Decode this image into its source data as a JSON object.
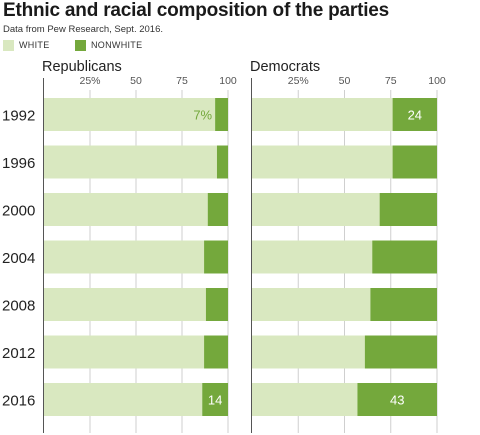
{
  "title": "Ethnic and racial composition of the parties",
  "subtitle": "Data from Pew Research, Sept. 2016.",
  "legend": [
    {
      "label": "WHITE",
      "color": "#d9e8c0"
    },
    {
      "label": "NONWHITE",
      "color": "#74a83c"
    }
  ],
  "chart_data": {
    "type": "bar",
    "orientation": "horizontal",
    "stacked": true,
    "xlim": [
      0,
      100
    ],
    "ticks": [
      25,
      50,
      75,
      100
    ],
    "tick_labels": [
      "25%",
      "50",
      "75",
      "100"
    ],
    "categories": [
      "1992",
      "1996",
      "2000",
      "2004",
      "2008",
      "2012",
      "2016"
    ],
    "panels": [
      {
        "title": "Republicans",
        "series": [
          {
            "name": "NONWHITE",
            "values": [
              7,
              6,
              11,
              13,
              12,
              13,
              14
            ]
          }
        ],
        "data_labels": [
          {
            "category": "1992",
            "text": "7%"
          },
          {
            "category": "2016",
            "text": "14"
          }
        ]
      },
      {
        "title": "Democrats",
        "series": [
          {
            "name": "NONWHITE",
            "values": [
              24,
              24,
              31,
              35,
              36,
              39,
              43
            ]
          }
        ],
        "data_labels": [
          {
            "category": "1992",
            "text": "24"
          },
          {
            "category": "2016",
            "text": "43"
          }
        ]
      }
    ]
  }
}
